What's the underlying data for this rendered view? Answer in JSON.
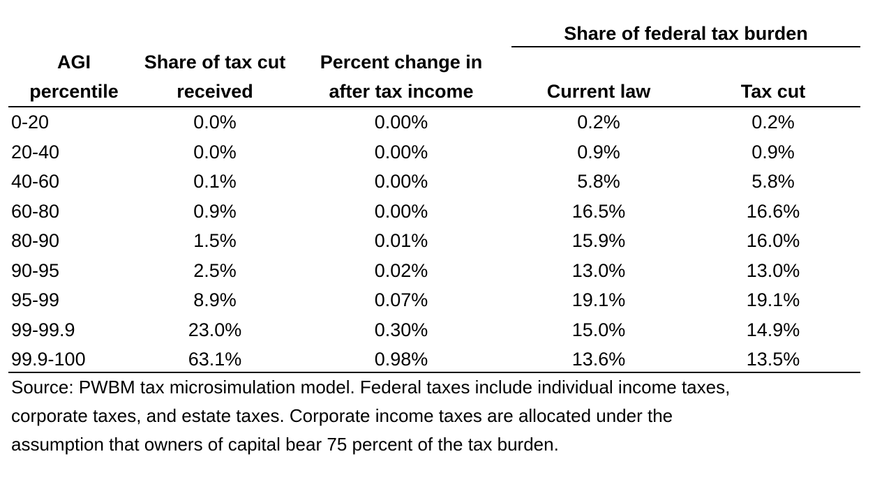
{
  "table": {
    "group_header": "Share of federal tax burden",
    "columns": [
      [
        "AGI",
        "percentile"
      ],
      [
        "Share of tax cut",
        "received"
      ],
      [
        "Percent change in",
        "after tax income"
      ],
      [
        "",
        "Current law"
      ],
      [
        "",
        "Tax cut"
      ]
    ],
    "rows": [
      [
        "0-20",
        "0.0%",
        "0.00%",
        "0.2%",
        "0.2%"
      ],
      [
        "20-40",
        "0.0%",
        "0.00%",
        "0.9%",
        "0.9%"
      ],
      [
        "40-60",
        "0.1%",
        "0.00%",
        "5.8%",
        "5.8%"
      ],
      [
        "60-80",
        "0.9%",
        "0.00%",
        "16.5%",
        "16.6%"
      ],
      [
        "80-90",
        "1.5%",
        "0.01%",
        "15.9%",
        "16.0%"
      ],
      [
        "90-95",
        "2.5%",
        "0.02%",
        "13.0%",
        "13.0%"
      ],
      [
        "95-99",
        "8.9%",
        "0.07%",
        "19.1%",
        "19.1%"
      ],
      [
        "99-99.9",
        "23.0%",
        "0.30%",
        "15.0%",
        "14.9%"
      ],
      [
        "99.9-100",
        "63.1%",
        "0.98%",
        "13.6%",
        "13.5%"
      ]
    ]
  },
  "source_note": [
    "Source: PWBM tax microsimulation model. Federal taxes include individual income taxes,",
    "corporate taxes, and estate taxes. Corporate income taxes are allocated under the",
    "assumption that owners of capital bear 75 percent of the tax burden."
  ]
}
